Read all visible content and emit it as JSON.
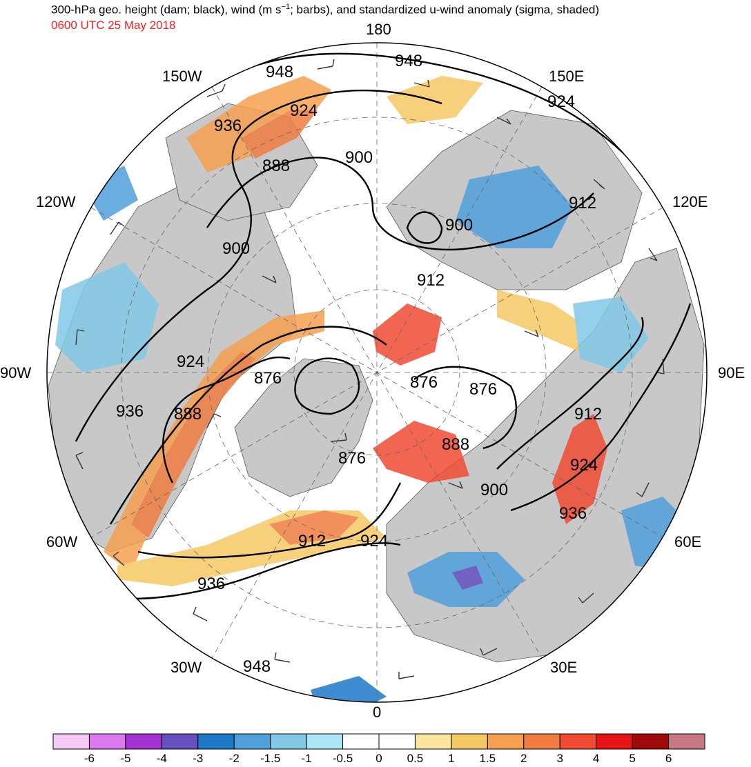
{
  "header": {
    "title_main": "300-hPa geo. height (dam; black), wind (m s",
    "title_sup": "−1",
    "title_rest": "; barbs), and standardized u-wind anomaly (sigma, shaded)",
    "valid_time": "0600 UTC 25 May 2018"
  },
  "map": {
    "projection": "north-polar-stereographic",
    "longitude_labels": [
      "180",
      "150E",
      "120E",
      "90E",
      "60E",
      "30E",
      "0",
      "30W",
      "60W",
      "90W",
      "120W",
      "150W"
    ],
    "contour_labels": [
      "948",
      "948",
      "924",
      "936",
      "924",
      "888",
      "900",
      "912",
      "900",
      "900",
      "912",
      "924",
      "876",
      "876",
      "876",
      "936",
      "888",
      "912",
      "876",
      "888",
      "924",
      "900",
      "936",
      "912",
      "924",
      "936",
      "948"
    ],
    "contour_color": "#000000",
    "land_color": "#c8c8c8",
    "coastline_color": "#555555"
  },
  "colorbar": {
    "tick_labels": [
      "-6",
      "-5",
      "-4",
      "-3",
      "-2",
      "-1.5",
      "-1",
      "-0.5",
      "0",
      "0.5",
      "1",
      "1.5",
      "2",
      "3",
      "4",
      "5",
      "6"
    ],
    "colors": [
      "#f6c8f6",
      "#dc78f0",
      "#a432d2",
      "#6450be",
      "#1e78c8",
      "#50a0dc",
      "#82c8e6",
      "#aae6f5",
      "#ffffff",
      "#ffffff",
      "#fae6a0",
      "#f5c864",
      "#f5a050",
      "#f07d41",
      "#f04b32",
      "#e61414",
      "#a00a0a",
      "#c87882"
    ]
  }
}
